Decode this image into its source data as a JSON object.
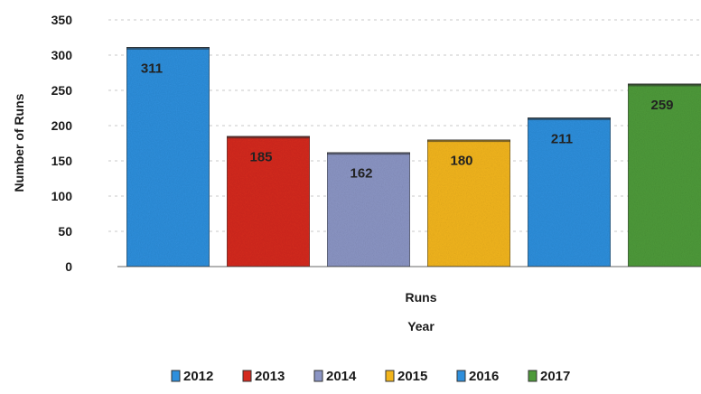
{
  "chart_data": {
    "type": "bar",
    "categories": [
      "2012",
      "2013",
      "2014",
      "2015",
      "2016",
      "2017"
    ],
    "values": [
      311,
      185,
      162,
      180,
      211,
      259
    ],
    "data_labels": [
      "311",
      "185",
      "162",
      "180",
      "211",
      "259"
    ],
    "colors": [
      "#2e8fdc",
      "#d42a1e",
      "#8b95c4",
      "#f2b51c",
      "#2e8fdc",
      "#4e9a3a"
    ],
    "title": "",
    "xlabel": "Runs",
    "xlabel2": "Year",
    "ylabel": "Number of Runs",
    "ylim": [
      0,
      350
    ],
    "yticks": [
      "0",
      "50",
      "100",
      "150",
      "200",
      "250",
      "300",
      "350"
    ],
    "grid": true,
    "legend_position": "bottom"
  }
}
